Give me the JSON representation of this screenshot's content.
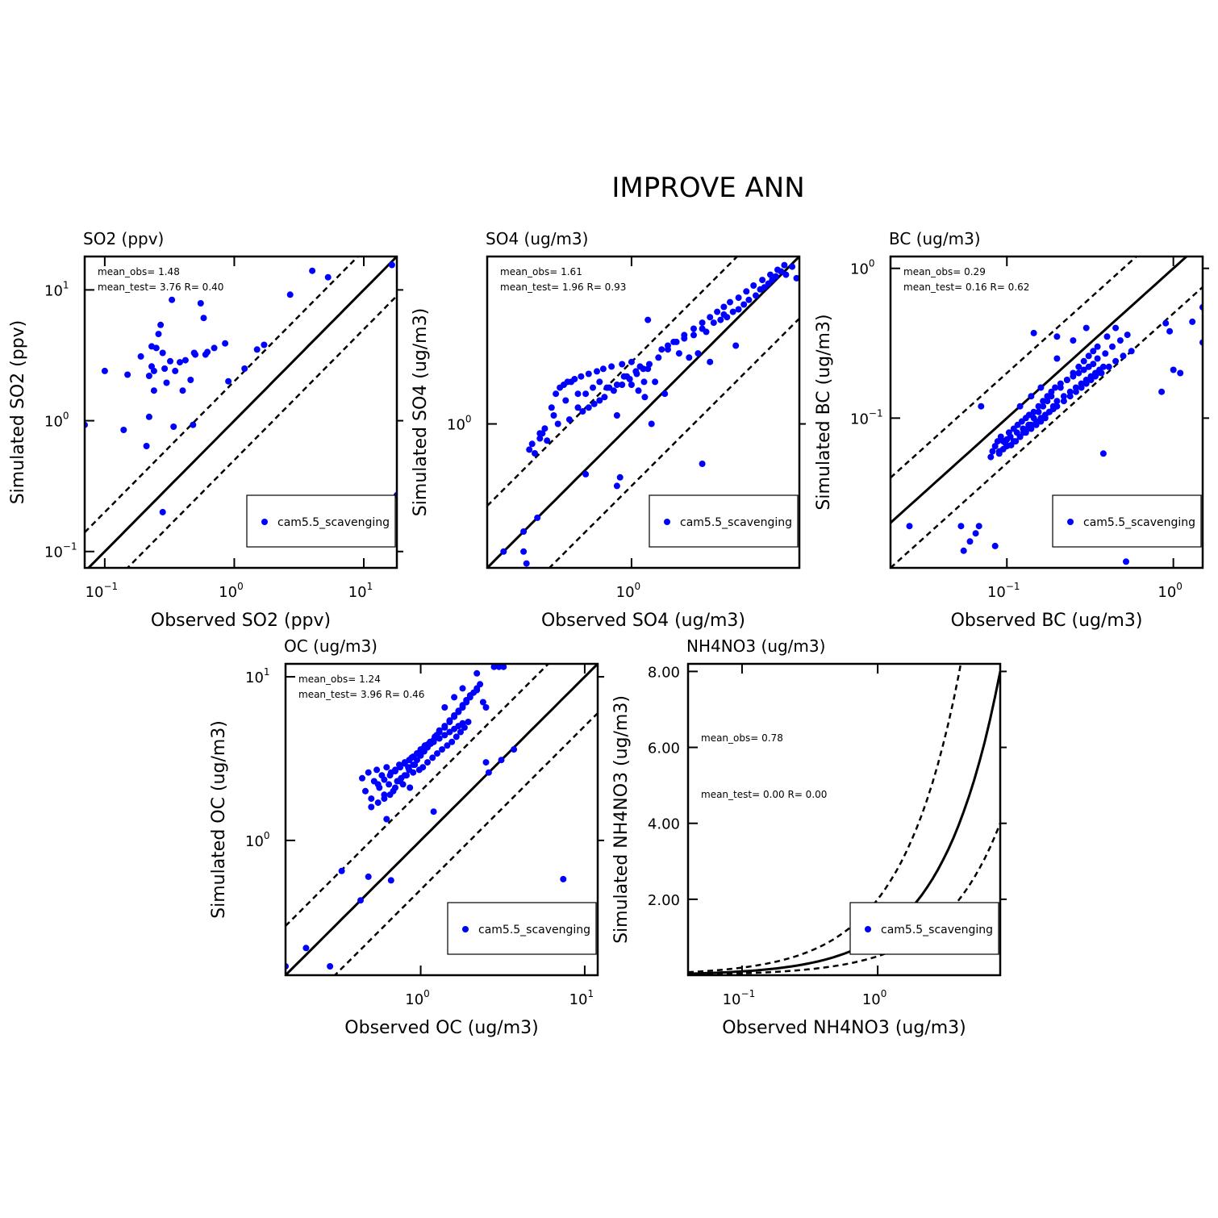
{
  "title": "IMPROVE ANN",
  "colors": {
    "points": "#0000ff",
    "lines": "#000000"
  },
  "legend_label": "cam5.5_scavenging",
  "chart_data": [
    {
      "id": "so2",
      "type": "scatter",
      "title": "SO2 (ppv)",
      "xlabel": "Observed SO2 (ppv)",
      "ylabel": "Simulated SO2 (ppv)",
      "scale": "log",
      "xlim": [
        0.07,
        18
      ],
      "ylim": [
        0.075,
        18
      ],
      "xticks": [
        {
          "base": "10",
          "exp": "−1",
          "value": 0.1
        },
        {
          "base": "10",
          "exp": "0",
          "value": 1
        },
        {
          "base": "10",
          "exp": "1",
          "value": 10
        }
      ],
      "yticks": [
        {
          "base": "10",
          "exp": "−1",
          "value": 0.1
        },
        {
          "base": "10",
          "exp": "0",
          "value": 1
        },
        {
          "base": "10",
          "exp": "1",
          "value": 10
        }
      ],
      "stats": {
        "line1": "mean_obs= 1.48",
        "line2": "mean_test= 3.76 R= 0.40"
      },
      "series": [
        {
          "name": "cam5.5_scavenging",
          "x": [
            0.07,
            0.1,
            0.14,
            0.15,
            0.19,
            0.21,
            0.22,
            0.22,
            0.23,
            0.23,
            0.24,
            0.24,
            0.25,
            0.26,
            0.27,
            0.28,
            0.28,
            0.29,
            0.3,
            0.32,
            0.33,
            0.34,
            0.35,
            0.38,
            0.4,
            0.42,
            0.46,
            0.48,
            0.49,
            0.5,
            0.55,
            0.58,
            0.6,
            0.62,
            0.7,
            0.85,
            0.9,
            1.2,
            1.5,
            1.7,
            2.7,
            4.0,
            5.3,
            16.5,
            18.0
          ],
          "y": [
            0.93,
            2.4,
            0.85,
            2.25,
            3.1,
            0.64,
            2.2,
            1.07,
            2.6,
            3.7,
            1.7,
            2.4,
            3.6,
            4.6,
            5.4,
            3.3,
            0.2,
            2.5,
            1.95,
            2.85,
            8.4,
            0.9,
            2.4,
            2.8,
            1.7,
            2.9,
            2.05,
            0.93,
            3.3,
            3.2,
            7.9,
            6.1,
            3.2,
            3.35,
            3.6,
            3.9,
            2.0,
            2.5,
            3.5,
            3.8,
            9.2,
            14,
            12.5,
            15.5,
            0.27
          ]
        }
      ]
    },
    {
      "id": "so4",
      "type": "scatter",
      "title": "SO4 (ug/m3)",
      "xlabel": "Observed SO4 (ug/m3)",
      "ylabel": "Simulated SO4 (ug/m3)",
      "scale": "log",
      "xlim": [
        0.2,
        6.5
      ],
      "ylim": [
        0.2,
        6.5
      ],
      "xticks": [
        {
          "base": "10",
          "exp": "0",
          "value": 1
        }
      ],
      "yticks": [
        {
          "base": "10",
          "exp": "0",
          "value": 1
        }
      ],
      "stats": {
        "line1": "mean_obs= 1.61",
        "line2": "mean_test= 1.96 R= 0.93"
      },
      "series": [
        {
          "name": "cam5.5_scavenging",
          "x": [
            0.24,
            0.3,
            0.31,
            0.35,
            0.3,
            0.32,
            0.34,
            0.36,
            0.37,
            0.39,
            0.41,
            0.43,
            0.45,
            0.47,
            0.49,
            0.51,
            0.53,
            0.55,
            0.57,
            0.6,
            0.62,
            0.65,
            0.68,
            0.7,
            0.73,
            0.76,
            0.8,
            0.85,
            0.9,
            0.95,
            1.0,
            1.05,
            1.1,
            1.15,
            1.2,
            1.3,
            1.4,
            1.5,
            1.6,
            1.7,
            1.8,
            1.9,
            2.0,
            2.1,
            2.2,
            2.3,
            2.5,
            2.7,
            2.9,
            3.1,
            3.3,
            3.5,
            3.7,
            4.0,
            4.2,
            4.4,
            4.6,
            4.8,
            5.0,
            5.3,
            5.6,
            6.0,
            6.3,
            0.36,
            0.42,
            0.48,
            0.55,
            0.62,
            0.7,
            0.78,
            0.85,
            0.92,
            1.0,
            1.08,
            1.16,
            0.33,
            0.38,
            0.44,
            0.5,
            0.58,
            0.66,
            0.74,
            0.82,
            0.9,
            0.98,
            1.06,
            1.14,
            1.22,
            1.35,
            1.5,
            1.65,
            1.8,
            2.0,
            2.2,
            2.4,
            2.6,
            2.8,
            3.0,
            3.3,
            3.6,
            3.9,
            4.3,
            4.7,
            5.1,
            5.5,
            0.6,
            0.85,
            0.88,
            1.2,
            1.25,
            1.45,
            2.2,
            2.4,
            2.8,
            3.2
          ],
          "y": [
            0.24,
            0.24,
            0.21,
            0.35,
            0.3,
            0.75,
            0.72,
            0.85,
            0.9,
            0.83,
            1.2,
            1.4,
            1.5,
            1.55,
            1.6,
            1.6,
            1.65,
            1.2,
            1.7,
            1.4,
            1.75,
            1.5,
            1.8,
            1.6,
            1.85,
            1.5,
            1.9,
            1.55,
            1.95,
            1.7,
            2.0,
            1.8,
            1.9,
            1.6,
            1.85,
            1.6,
            2.3,
            2.4,
            2.5,
            2.2,
            2.6,
            2.1,
            2.7,
            2.2,
            2.9,
            2.8,
            3.1,
            3.2,
            3.3,
            3.5,
            3.6,
            3.8,
            4.0,
            4.2,
            4.5,
            4.6,
            4.8,
            5.0,
            5.2,
            5.5,
            5.3,
            5.8,
            5.1,
            0.9,
            1.1,
            1.3,
            1.4,
            1.2,
            1.3,
            1.5,
            1.1,
            1.7,
            1.55,
            1.45,
            1.35,
            0.8,
            0.95,
            1.0,
            1.05,
            1.15,
            1.25,
            1.35,
            1.45,
            1.55,
            1.65,
            1.75,
            1.85,
            1.95,
            2.1,
            2.3,
            2.5,
            2.7,
            2.9,
            3.1,
            3.3,
            3.5,
            3.7,
            3.9,
            4.1,
            4.4,
            4.7,
            5.0,
            5.3,
            5.6,
            5.9,
            0.57,
            0.5,
            0.55,
            3.2,
            1.0,
            1.4,
            0.64,
            2.0,
            3.4,
            2.4
          ]
        }
      ]
    },
    {
      "id": "bc",
      "type": "scatter",
      "title": "BC (ug/m3)",
      "xlabel": "Observed BC (ug/m3)",
      "ylabel": "Simulated BC (ug/m3)",
      "scale": "log",
      "xlim": [
        0.02,
        1.5
      ],
      "ylim": [
        0.01,
        1.2
      ],
      "xticks": [
        {
          "base": "10",
          "exp": "−1",
          "value": 0.1
        },
        {
          "base": "10",
          "exp": "0",
          "value": 1
        }
      ],
      "yticks": [
        {
          "base": "10",
          "exp": "−1",
          "value": 0.1
        },
        {
          "base": "10",
          "exp": "0",
          "value": 1
        }
      ],
      "stats": {
        "line1": "mean_obs= 0.29",
        "line2": "mean_test= 0.16 R= 0.62"
      },
      "series": [
        {
          "name": "cam5.5_scavenging",
          "x": [
            0.026,
            0.053,
            0.055,
            0.06,
            0.065,
            0.068,
            0.085,
            0.08,
            0.082,
            0.085,
            0.088,
            0.09,
            0.092,
            0.095,
            0.098,
            0.1,
            0.103,
            0.106,
            0.11,
            0.113,
            0.116,
            0.12,
            0.123,
            0.126,
            0.13,
            0.133,
            0.136,
            0.14,
            0.145,
            0.15,
            0.155,
            0.16,
            0.165,
            0.17,
            0.175,
            0.18,
            0.185,
            0.19,
            0.195,
            0.2,
            0.21,
            0.22,
            0.23,
            0.24,
            0.25,
            0.26,
            0.27,
            0.28,
            0.29,
            0.3,
            0.31,
            0.32,
            0.33,
            0.34,
            0.35,
            0.37,
            0.39,
            0.41,
            0.43,
            0.45,
            0.48,
            0.5,
            0.53,
            0.56,
            0.09,
            0.1,
            0.11,
            0.12,
            0.13,
            0.14,
            0.15,
            0.16,
            0.17,
            0.18,
            0.19,
            0.2,
            0.22,
            0.24,
            0.26,
            0.28,
            0.3,
            0.32,
            0.34,
            0.36,
            0.38,
            0.095,
            0.105,
            0.115,
            0.125,
            0.135,
            0.145,
            0.155,
            0.165,
            0.175,
            0.185,
            0.21,
            0.23,
            0.25,
            0.27,
            0.29,
            0.31,
            0.33,
            0.35,
            0.12,
            0.14,
            0.16,
            0.2,
            0.25,
            0.3,
            0.4,
            0.45,
            0.9,
            0.95,
            1.0,
            1.1,
            1.3,
            1.5,
            1.5,
            0.85,
            0.07,
            0.52,
            0.38,
            0.145,
            0.2,
            0.35
          ],
          "y": [
            0.019,
            0.019,
            0.013,
            0.015,
            0.017,
            0.019,
            0.014,
            0.055,
            0.06,
            0.065,
            0.07,
            0.058,
            0.075,
            0.062,
            0.068,
            0.072,
            0.08,
            0.066,
            0.085,
            0.07,
            0.09,
            0.075,
            0.095,
            0.08,
            0.1,
            0.085,
            0.105,
            0.09,
            0.11,
            0.095,
            0.12,
            0.1,
            0.13,
            0.105,
            0.14,
            0.11,
            0.15,
            0.115,
            0.16,
            0.12,
            0.17,
            0.13,
            0.18,
            0.14,
            0.19,
            0.15,
            0.2,
            0.16,
            0.21,
            0.17,
            0.22,
            0.18,
            0.23,
            0.19,
            0.25,
            0.2,
            0.27,
            0.22,
            0.3,
            0.24,
            0.33,
            0.26,
            0.36,
            0.28,
            0.06,
            0.065,
            0.07,
            0.075,
            0.08,
            0.085,
            0.09,
            0.095,
            0.1,
            0.11,
            0.12,
            0.13,
            0.14,
            0.15,
            0.16,
            0.17,
            0.18,
            0.19,
            0.2,
            0.21,
            0.22,
            0.07,
            0.075,
            0.08,
            0.085,
            0.09,
            0.1,
            0.11,
            0.12,
            0.13,
            0.14,
            0.16,
            0.18,
            0.2,
            0.22,
            0.24,
            0.26,
            0.28,
            0.3,
            0.12,
            0.14,
            0.16,
            0.25,
            0.33,
            0.4,
            0.35,
            0.4,
            0.43,
            0.38,
            0.21,
            0.2,
            0.44,
            0.55,
            0.32,
            0.15,
            0.12,
            0.011,
            0.058,
            0.37,
            0.35,
            0.2
          ]
        }
      ]
    },
    {
      "id": "oc",
      "type": "scatter",
      "title": "OC (ug/m3)",
      "xlabel": "Observed OC (ug/m3)",
      "ylabel": "Simulated OC (ug/m3)",
      "scale": "log",
      "xlim": [
        0.15,
        12
      ],
      "ylim": [
        0.15,
        12
      ],
      "xticks": [
        {
          "base": "10",
          "exp": "0",
          "value": 1
        },
        {
          "base": "10",
          "exp": "1",
          "value": 10
        }
      ],
      "yticks": [
        {
          "base": "10",
          "exp": "0",
          "value": 1
        },
        {
          "base": "10",
          "exp": "1",
          "value": 10
        }
      ],
      "stats": {
        "line1": "mean_obs= 1.24",
        "line2": "mean_test= 3.96 R= 0.46"
      },
      "series": [
        {
          "name": "cam5.5_scavenging",
          "x": [
            0.15,
            0.2,
            0.28,
            0.33,
            0.43,
            0.48,
            0.66,
            7.4,
            0.44,
            0.46,
            0.48,
            0.5,
            0.52,
            0.54,
            0.56,
            0.58,
            0.6,
            0.62,
            0.64,
            0.66,
            0.68,
            0.7,
            0.72,
            0.74,
            0.76,
            0.78,
            0.8,
            0.82,
            0.84,
            0.86,
            0.88,
            0.9,
            0.92,
            0.95,
            0.98,
            1.0,
            1.03,
            1.06,
            1.1,
            1.14,
            1.18,
            1.22,
            1.26,
            1.3,
            1.35,
            1.4,
            1.45,
            1.5,
            1.55,
            1.6,
            1.65,
            1.7,
            1.75,
            1.8,
            1.85,
            1.9,
            1.95,
            2.0,
            2.1,
            2.2,
            2.3,
            2.4,
            2.5,
            0.5,
            0.55,
            0.6,
            0.65,
            0.7,
            0.75,
            0.8,
            0.85,
            0.9,
            0.95,
            1.0,
            1.05,
            1.1,
            1.15,
            1.2,
            1.25,
            1.3,
            1.4,
            1.5,
            1.6,
            1.7,
            1.8,
            1.9,
            2.0,
            2.2,
            0.55,
            0.6,
            0.65,
            0.7,
            0.75,
            0.8,
            0.85,
            0.9,
            0.95,
            1.0,
            1.05,
            1.1,
            1.2,
            1.3,
            1.4,
            1.5,
            1.6,
            1.7,
            1.8,
            0.62,
            1.2,
            2.6,
            3.1,
            3.7,
            2.5,
            2.8,
            3.0,
            3.2,
            2.2,
            1.4,
            1.6,
            1.8
          ],
          "y": [
            0.17,
            0.22,
            0.17,
            0.65,
            0.43,
            0.6,
            0.57,
            0.58,
            2.4,
            2.0,
            2.6,
            1.8,
            2.3,
            2.7,
            2.1,
            2.5,
            1.9,
            2.8,
            2.2,
            2.6,
            2.0,
            2.7,
            2.3,
            2.9,
            2.4,
            2.2,
            3.0,
            2.5,
            2.8,
            2.1,
            3.2,
            2.6,
            2.9,
            3.4,
            2.7,
            3.6,
            2.8,
            3.8,
            3.0,
            4.0,
            3.2,
            4.3,
            3.4,
            4.6,
            3.6,
            4.9,
            3.8,
            5.3,
            4.0,
            5.7,
            4.3,
            6.1,
            4.6,
            6.5,
            4.9,
            7.0,
            5.3,
            7.5,
            8.0,
            8.5,
            9.0,
            7.0,
            6.5,
            1.6,
            1.7,
            1.8,
            1.9,
            2.1,
            2.3,
            2.5,
            2.7,
            2.9,
            3.1,
            3.3,
            3.5,
            3.7,
            3.9,
            4.1,
            4.4,
            4.7,
            5.0,
            5.4,
            5.8,
            6.2,
            6.7,
            7.2,
            7.7,
            8.3,
            2.2,
            2.35,
            2.5,
            2.65,
            2.8,
            2.95,
            3.1,
            3.25,
            3.4,
            3.55,
            3.7,
            3.85,
            4.0,
            4.2,
            4.4,
            4.6,
            4.8,
            5.0,
            5.2,
            1.35,
            1.5,
            2.6,
            3.1,
            3.6,
            3.0,
            11.5,
            11.5,
            11.5,
            10.5,
            6.5,
            7.5,
            8.5
          ]
        }
      ]
    },
    {
      "id": "nh4no3",
      "type": "scatter",
      "title": "NH4NO3 (ug/m3)",
      "xlabel": "Observed NH4NO3 (ug/m3)",
      "ylabel": "Simulated NH4NO3 (ug/m3)",
      "scale": "semilogx",
      "xlim": [
        0.04,
        8
      ],
      "ylim": [
        0,
        8.2
      ],
      "xticks": [
        {
          "base": "10",
          "exp": "−1",
          "value": 0.1
        },
        {
          "base": "10",
          "exp": "0",
          "value": 1
        }
      ],
      "yticks": [
        {
          "label": "2.00",
          "value": 2
        },
        {
          "label": "4.00",
          "value": 4
        },
        {
          "label": "6.00",
          "value": 6
        },
        {
          "label": "8.00",
          "value": 8
        }
      ],
      "stats": {
        "line1": "mean_obs= 0.78",
        "line2": "mean_test= 0.00 R= 0.00"
      },
      "series": [
        {
          "name": "cam5.5_scavenging",
          "x": [],
          "y": []
        }
      ]
    }
  ]
}
